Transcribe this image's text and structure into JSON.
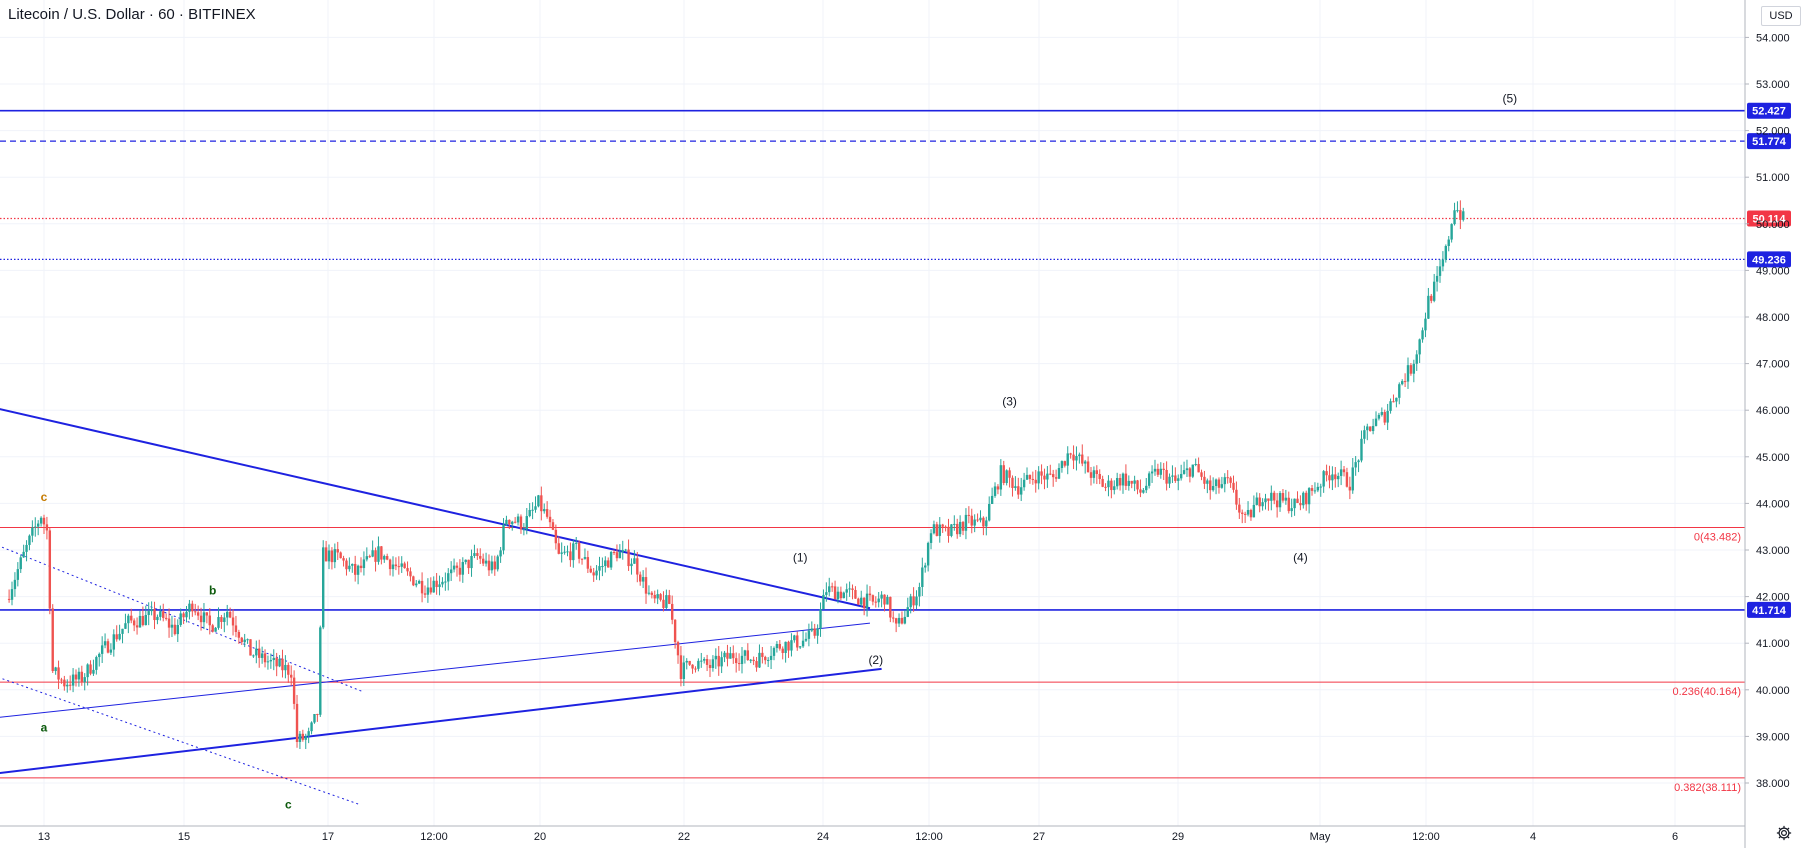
{
  "header": {
    "symbol": "Litecoin / U.S. Dollar",
    "interval": "60",
    "exchange": "BITFINEX",
    "separator": " · "
  },
  "currency_label": "USD",
  "colors": {
    "up": "#26a69a",
    "down": "#ef5350",
    "blue": "#1e22e0",
    "red": "#f23645",
    "grid": "#f0f3fa",
    "axis_text": "#131722",
    "wave_a_label": "#0c5a0c",
    "wave_c_label": "#c77c02"
  },
  "chart_data": {
    "type": "candlestick",
    "price_range": [
      37.7,
      54.4
    ],
    "y_ticks": [
      38,
      39,
      40,
      41,
      42,
      43,
      44,
      45,
      46,
      47,
      48,
      49,
      50,
      51,
      52,
      53,
      54
    ],
    "x_ticks": [
      "13",
      "15",
      "17",
      "12:00",
      "20",
      "22",
      "24",
      "12:00",
      "27",
      "29",
      "May",
      "12:00",
      "4",
      "6"
    ],
    "price_path": [
      [
        "Apr 12 12:00",
        41.95
      ],
      [
        "Apr 12 20:00",
        43.2
      ],
      [
        "Apr 13 00:00",
        43.75
      ],
      [
        "Apr 13 02:00",
        43.4
      ],
      [
        "Apr 13 04:00",
        40.4
      ],
      [
        "Apr 13 08:00",
        40.15
      ],
      [
        "Apr 13 14:00",
        40.25
      ],
      [
        "Apr 13 22:00",
        40.9
      ],
      [
        "Apr 14 06:00",
        41.45
      ],
      [
        "Apr 14 16:00",
        41.6
      ],
      [
        "Apr 14 22:00",
        41.3
      ],
      [
        "Apr 15 04:00",
        41.85
      ],
      [
        "Apr 15 10:00",
        41.35
      ],
      [
        "Apr 15 16:00",
        41.7
      ],
      [
        "Apr 16 00:00",
        40.8
      ],
      [
        "Apr 16 08:00",
        40.55
      ],
      [
        "Apr 16 14:00",
        40.4
      ],
      [
        "Apr 16 16:00",
        38.9
      ],
      [
        "Apr 16 20:00",
        39.0
      ],
      [
        "Apr 16 23:00",
        39.5
      ],
      [
        "Apr 17 01:00",
        42.9
      ],
      [
        "Apr 17 06:00",
        42.85
      ],
      [
        "Apr 17 12:00",
        42.5
      ],
      [
        "Apr 17 20:00",
        42.95
      ],
      [
        "Apr 18 04:00",
        42.55
      ],
      [
        "Apr 18 12:00",
        42.2
      ],
      [
        "Apr 18 22:00",
        42.5
      ],
      [
        "Apr 19 06:00",
        42.85
      ],
      [
        "Apr 19 12:00",
        42.55
      ],
      [
        "Apr 19 16:00",
        43.7
      ],
      [
        "Apr 19 22:00",
        43.55
      ],
      [
        "Apr 20 03:00",
        44.0
      ],
      [
        "Apr 20 06:00",
        43.7
      ],
      [
        "Apr 20 10:00",
        42.85
      ],
      [
        "Apr 20 16:00",
        43.0
      ],
      [
        "Apr 20 22:00",
        42.5
      ],
      [
        "Apr 21 06:00",
        42.95
      ],
      [
        "Apr 21 12:00",
        42.75
      ],
      [
        "Apr 21 18:00",
        41.9
      ],
      [
        "Apr 22 00:00",
        41.85
      ],
      [
        "Apr 22 04:00",
        40.4
      ],
      [
        "Apr 22 08:00",
        40.6
      ],
      [
        "Apr 22 14:00",
        40.5
      ],
      [
        "Apr 22 22:00",
        40.75
      ],
      [
        "Apr 23 06:00",
        40.65
      ],
      [
        "Apr 23 14:00",
        40.95
      ],
      [
        "Apr 23 22:00",
        41.05
      ],
      [
        "Apr 24 02:00",
        41.2
      ],
      [
        "Apr 24 06:00",
        42.15
      ],
      [
        "Apr 24 14:00",
        42.05
      ],
      [
        "Apr 24 22:00",
        41.85
      ],
      [
        "Apr 25 02:00",
        42.0
      ],
      [
        "Apr 25 06:00",
        41.3
      ],
      [
        "Apr 25 10:00",
        41.75
      ],
      [
        "Apr 25 14:00",
        42.2
      ],
      [
        "Apr 25 18:00",
        43.45
      ],
      [
        "Apr 26 00:00",
        43.35
      ],
      [
        "Apr 26 06:00",
        43.6
      ],
      [
        "Apr 26 12:00",
        43.55
      ],
      [
        "Apr 26 18:00",
        44.65
      ],
      [
        "Apr 27 00:00",
        44.35
      ],
      [
        "Apr 27 06:00",
        44.6
      ],
      [
        "Apr 27 12:00",
        44.55
      ],
      [
        "Apr 27 18:00",
        45.15
      ],
      [
        "Apr 28 00:00",
        44.7
      ],
      [
        "Apr 28 06:00",
        44.35
      ],
      [
        "Apr 28 12:00",
        44.55
      ],
      [
        "Apr 28 18:00",
        44.25
      ],
      [
        "Apr 29 00:00",
        44.7
      ],
      [
        "Apr 29 06:00",
        44.45
      ],
      [
        "Apr 29 12:00",
        44.8
      ],
      [
        "Apr 29 18:00",
        44.3
      ],
      [
        "Apr 30 00:00",
        44.45
      ],
      [
        "Apr 30 06:00",
        43.6
      ],
      [
        "Apr 30 12:00",
        44.2
      ],
      [
        "Apr 30 18:00",
        44.05
      ],
      [
        "May 1 00:00",
        43.95
      ],
      [
        "May 1 06:00",
        44.35
      ],
      [
        "May 1 12:00",
        44.7
      ],
      [
        "May 1 18:00",
        44.45
      ],
      [
        "May 2 00:00",
        45.6
      ],
      [
        "May 2 06:00",
        45.9
      ],
      [
        "May 2 12:00",
        46.65
      ],
      [
        "May 2 15:00",
        46.9
      ],
      [
        "May 2 18:00",
        47.5
      ],
      [
        "May 2 21:00",
        48.35
      ],
      [
        "May 3 00:00",
        48.75
      ],
      [
        "May 3 03:00",
        49.4
      ],
      [
        "May 3 06:00",
        50.4
      ],
      [
        "May 3 09:00",
        50.1
      ]
    ],
    "horizontal_lines": [
      {
        "price": 52.427,
        "label": "52.427",
        "style": "solid",
        "color": "blue"
      },
      {
        "price": 51.774,
        "label": "51.774",
        "style": "dashed",
        "color": "blue"
      },
      {
        "price": 50.114,
        "label": "50.114",
        "style": "dotted",
        "color": "red"
      },
      {
        "price": 49.236,
        "label": "49.236",
        "style": "dotted",
        "color": "blue"
      },
      {
        "price": 41.714,
        "label": "41.714",
        "style": "solid",
        "color": "blue"
      }
    ],
    "fib_levels": [
      {
        "price": 43.482,
        "label": "0(43.482)"
      },
      {
        "price": 40.164,
        "label": "0.236(40.164)"
      },
      {
        "price": 38.111,
        "label": "0.382(38.111)"
      }
    ],
    "trendlines": [
      {
        "from": [
          "Apr 12 00:00",
          46.15
        ],
        "to": [
          "Apr 24 20:00",
          41.75
        ],
        "style": "solid",
        "width": 2
      },
      {
        "from": [
          "Apr 12 00:00",
          38.15
        ],
        "to": [
          "Apr 25 00:00",
          40.45
        ],
        "style": "solid",
        "width": 2
      },
      {
        "from": [
          "Apr 12 00:00",
          39.35
        ],
        "to": [
          "Apr 24 20:00",
          41.43
        ],
        "style": "solid",
        "width": 1
      },
      {
        "from": [
          "Apr 12 00:00",
          43.3
        ],
        "to": [
          "Apr 17 14:00",
          39.95
        ],
        "style": "dotted",
        "width": 1
      },
      {
        "from": [
          "Apr 12 00:00",
          40.45
        ],
        "to": [
          "Apr 17 12:00",
          37.55
        ],
        "style": "dotted",
        "width": 1
      }
    ],
    "wave_labels": [
      {
        "text": "c",
        "at": [
          "Apr 13 00:00",
          44.05
        ],
        "color": "wave_c_label"
      },
      {
        "text": "b",
        "at": [
          "Apr 15 10:00",
          42.05
        ],
        "color": "wave_a_label"
      },
      {
        "text": "a",
        "at": [
          "Apr 13 00:00",
          39.1
        ],
        "color": "wave_a_label"
      },
      {
        "text": "c",
        "at": [
          "Apr 16 12:00",
          37.45
        ],
        "color": "wave_a_label"
      },
      {
        "text": "(1)",
        "at": [
          "Apr 23 20:00",
          42.75
        ],
        "color": "axis_text"
      },
      {
        "text": "(2)",
        "at": [
          "Apr 24 22:00",
          40.55
        ],
        "color": "axis_text"
      },
      {
        "text": "(3)",
        "at": [
          "Apr 26 20:00",
          46.1
        ],
        "color": "axis_text"
      },
      {
        "text": "(4)",
        "at": [
          "May 1 00:00",
          42.75
        ],
        "color": "axis_text"
      },
      {
        "text": "(5)",
        "at": [
          "May 4 00:00",
          52.6
        ],
        "color": "axis_text"
      }
    ]
  }
}
